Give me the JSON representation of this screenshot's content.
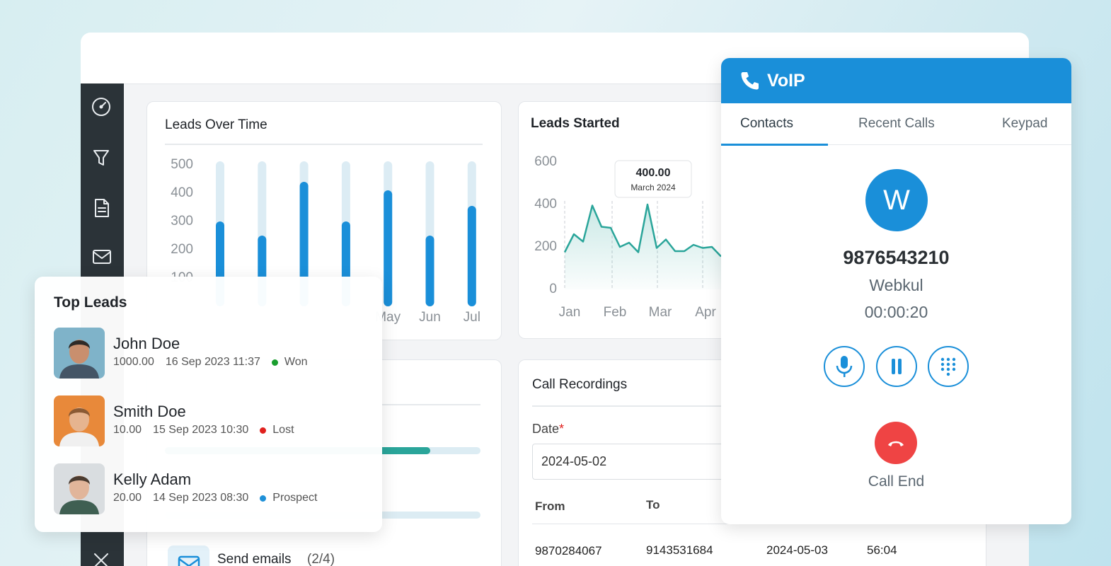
{
  "leads_over_time": {
    "type": "bar",
    "title": "Leads Over Time",
    "categories": [
      null,
      null,
      null,
      null,
      "May",
      "Jun",
      "Jul"
    ],
    "values": [
      300,
      250,
      440,
      300,
      410,
      250,
      355
    ],
    "color": "#1a8fd9",
    "ylim": [
      0,
      500
    ],
    "yticks": [
      100,
      200,
      300,
      400,
      500
    ]
  },
  "leads_started": {
    "type": "line",
    "title": "Leads Started",
    "categories": [
      "Jan",
      "Feb",
      "Mar",
      "Apr"
    ],
    "values": [
      175,
      260,
      225,
      395,
      295,
      290,
      200,
      220,
      175,
      400,
      195,
      235,
      180,
      180,
      210,
      195,
      200,
      155
    ],
    "color": "#2aa59a",
    "ylim": [
      0,
      600
    ],
    "yticks": [
      0,
      200,
      400,
      600
    ],
    "tooltip": {
      "value": "400.00",
      "date": "March 2024"
    }
  },
  "top_leads": {
    "title": "Top Leads",
    "leads": [
      {
        "name": "John Doe",
        "amount": "1000.00",
        "date": "16 Sep 2023 11:37",
        "status": "Won",
        "status_color": "#1a9e2e"
      },
      {
        "name": "Smith Doe",
        "amount": "10.00",
        "date": "15 Sep 2023 10:30",
        "status": "Lost",
        "status_color": "#e0201d"
      },
      {
        "name": "Kelly Adam",
        "amount": "20.00",
        "date": "14 Sep 2023 08:30",
        "status": "Prospect",
        "status_color": "#1e90d8"
      }
    ]
  },
  "tasks": [
    {
      "label": "Send emails",
      "count": "(2/4)"
    }
  ],
  "call_recordings": {
    "title": "Call Recordings",
    "date_label": "Date",
    "date_value": "2024-05-02",
    "columns": [
      "From",
      "To"
    ],
    "rows": [
      [
        "9870284067",
        "9143531684",
        "2024-05-03",
        "56:04"
      ]
    ]
  },
  "voip": {
    "title": "VoIP",
    "tabs": [
      "Contacts",
      "Recent Calls",
      "Keypad"
    ],
    "avatar_letter": "W",
    "number": "9876543210",
    "name": "Webkul",
    "timer": "00:00:20",
    "end_label": "Call End"
  }
}
